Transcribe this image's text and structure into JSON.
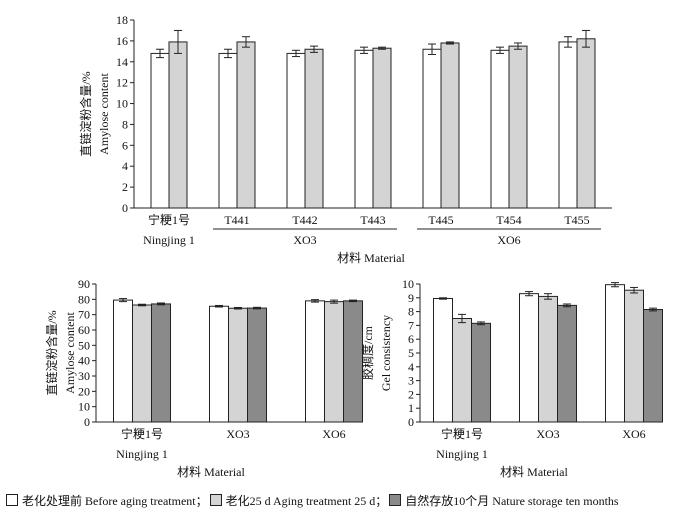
{
  "colors": {
    "before": "#ffffff",
    "aging25": "#d4d4d4",
    "storage10": "#8a8a8a",
    "axis": "#222222"
  },
  "legend": {
    "items": [
      {
        "key": "before",
        "label": "老化处理前 Before aging treatment；"
      },
      {
        "key": "aging25",
        "label": "老化25 d  Aging treatment 25 d；"
      },
      {
        "key": "storage10",
        "label": "自然存放10个月 Nature storage ten months"
      }
    ]
  },
  "chart_data": [
    {
      "id": "top",
      "type": "bar",
      "ylabel_cn": "直链淀粉含量/%",
      "ylabel_en": "Amylose content",
      "xlabel": "材料 Material",
      "ylim": [
        0,
        18
      ],
      "yticks": [
        0,
        2,
        4,
        6,
        8,
        10,
        12,
        14,
        16,
        18
      ],
      "categories": [
        "宁粳1号",
        "T441",
        "T442",
        "T443",
        "T445",
        "T454",
        "T455"
      ],
      "groups": [
        {
          "label": "Ningjing 1",
          "from": 0,
          "to": 0,
          "line": false
        },
        {
          "label": "XO3",
          "from": 1,
          "to": 3,
          "line": true
        },
        {
          "label": "XO6",
          "from": 4,
          "to": 6,
          "line": true
        }
      ],
      "series": [
        {
          "key": "before",
          "values": [
            14.8,
            14.8,
            14.8,
            15.1,
            15.2,
            15.1,
            15.9
          ],
          "errors": [
            0.4,
            0.4,
            0.3,
            0.3,
            0.5,
            0.3,
            0.5
          ]
        },
        {
          "key": "aging25",
          "values": [
            15.9,
            15.9,
            15.2,
            15.3,
            15.8,
            15.5,
            16.2
          ],
          "errors": [
            1.1,
            0.5,
            0.3,
            0.1,
            0.1,
            0.3,
            0.8
          ]
        }
      ]
    },
    {
      "id": "bottom-left",
      "type": "bar",
      "ylabel_cn": "直链淀粉含量/%",
      "ylabel_en": "Amylose content",
      "xlabel": "材料 Material",
      "ylim": [
        0,
        90
      ],
      "yticks": [
        0,
        10,
        20,
        30,
        40,
        50,
        60,
        70,
        80,
        90
      ],
      "categories": [
        "宁粳1号",
        "XO3",
        "XO6"
      ],
      "groups": [
        {
          "label": "Ningjing 1",
          "from": 0,
          "to": 0,
          "line": false
        }
      ],
      "series": [
        {
          "key": "before",
          "values": [
            79.5,
            75.5,
            79.0
          ],
          "errors": [
            1.0,
            0.5,
            0.8
          ]
        },
        {
          "key": "aging25",
          "values": [
            76.3,
            74.2,
            78.5
          ],
          "errors": [
            0.5,
            0.5,
            1.0
          ]
        },
        {
          "key": "storage10",
          "values": [
            77.0,
            74.3,
            79.0
          ],
          "errors": [
            0.6,
            0.5,
            0.5
          ]
        }
      ]
    },
    {
      "id": "bottom-right",
      "type": "bar",
      "ylabel_cn": "胶稠度/cm",
      "ylabel_en": "Gel consistency",
      "xlabel": "材料 Material",
      "ylim": [
        0,
        10
      ],
      "yticks": [
        0,
        1,
        2,
        3,
        4,
        5,
        6,
        7,
        8,
        9,
        10
      ],
      "categories": [
        "宁粳1号",
        "XO3",
        "XO6"
      ],
      "groups": [
        {
          "label": "Ningjing 1",
          "from": 0,
          "to": 0,
          "line": false
        }
      ],
      "series": [
        {
          "key": "before",
          "values": [
            8.95,
            9.3,
            9.95
          ],
          "errors": [
            0.05,
            0.15,
            0.15
          ]
        },
        {
          "key": "aging25",
          "values": [
            7.5,
            9.1,
            9.55
          ],
          "errors": [
            0.3,
            0.2,
            0.2
          ]
        },
        {
          "key": "storage10",
          "values": [
            7.15,
            8.45,
            8.15
          ],
          "errors": [
            0.1,
            0.1,
            0.1
          ]
        }
      ]
    }
  ]
}
